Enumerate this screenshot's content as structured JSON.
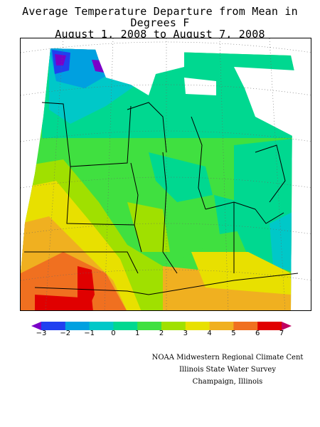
{
  "title": {
    "line1": "Average Temperature Departure from Mean in Degrees F",
    "line2": "August 1, 2008 to August 7, 2008"
  },
  "legend": {
    "labels": [
      "−3",
      "−2",
      "−1",
      "0",
      "1",
      "2",
      "3",
      "4",
      "5",
      "6",
      "7"
    ],
    "colors": [
      "#7a00c8",
      "#2040f0",
      "#00a0e0",
      "#00c8c8",
      "#00d890",
      "#40e040",
      "#a0e000",
      "#e8e000",
      "#f0b020",
      "#f07020",
      "#e00000",
      "#c00060"
    ]
  },
  "credits": {
    "line1": "NOAA Midwestern Regional Climate Cent",
    "line2": "Illinois State Water Survey",
    "line3": "Champaign, Illinois"
  },
  "colors": {
    "cold_min": "#7a00c8",
    "hot_max": "#e00000",
    "water_white": "#ffffff"
  }
}
